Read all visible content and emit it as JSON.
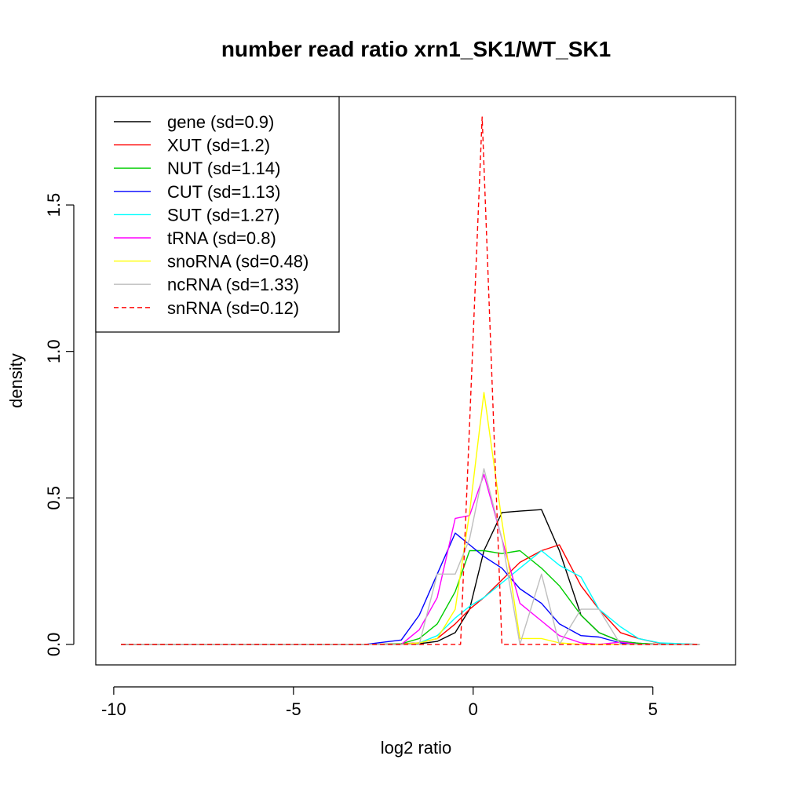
{
  "chart_data": {
    "type": "line",
    "title": "number read ratio xrn1_SK1/WT_SK1",
    "xlabel": "log2 ratio",
    "ylabel": "density",
    "xlim": [
      -10.5,
      7.3
    ],
    "ylim": [
      -0.07,
      1.87
    ],
    "xticks": [
      -10,
      -5,
      0,
      5
    ],
    "xtick_labels": [
      "-10",
      "-5",
      "0",
      "5"
    ],
    "yticks": [
      0.0,
      0.5,
      1.0,
      1.5
    ],
    "ytick_labels": [
      "0.0",
      "0.5",
      "1.0",
      "1.5"
    ],
    "grid": false,
    "legend_position": "top-left",
    "series": [
      {
        "name": "gene (sd=0.9)",
        "color": "#000000",
        "dash": "solid",
        "x": [
          -9.8,
          -3,
          -2,
          -1.5,
          -1,
          -0.5,
          -0.1,
          0.3,
          0.8,
          1.3,
          1.9,
          2.4,
          3,
          3.5,
          4.1,
          4.6,
          5.2,
          6.3
        ],
        "y": [
          0,
          0,
          0,
          0.002,
          0.01,
          0.04,
          0.12,
          0.32,
          0.45,
          0.455,
          0.46,
          0.32,
          0.1,
          0.04,
          0.01,
          0.004,
          0,
          0
        ]
      },
      {
        "name": "XUT (sd=1.2)",
        "color": "#ff0000",
        "dash": "solid",
        "x": [
          -9.8,
          -3,
          -2,
          -1.5,
          -1,
          -0.5,
          -0.1,
          0.3,
          0.8,
          1.3,
          1.9,
          2.4,
          3,
          3.5,
          4.1,
          4.6,
          5.2,
          6.3
        ],
        "y": [
          0,
          0,
          0.002,
          0.005,
          0.02,
          0.07,
          0.12,
          0.16,
          0.22,
          0.28,
          0.32,
          0.34,
          0.2,
          0.12,
          0.04,
          0.02,
          0.004,
          0
        ]
      },
      {
        "name": "NUT (sd=1.14)",
        "color": "#00cd00",
        "dash": "solid",
        "x": [
          -9.8,
          -3,
          -2,
          -1.5,
          -1,
          -0.5,
          -0.1,
          0.3,
          0.8,
          1.3,
          1.9,
          2.4,
          3,
          3.5,
          4.1,
          4.6,
          5.2,
          6.3
        ],
        "y": [
          0,
          0,
          0.002,
          0.02,
          0.07,
          0.18,
          0.32,
          0.32,
          0.31,
          0.32,
          0.26,
          0.2,
          0.1,
          0.04,
          0.01,
          0.004,
          0,
          0
        ]
      },
      {
        "name": "CUT (sd=1.13)",
        "color": "#0000ff",
        "dash": "solid",
        "x": [
          -9.8,
          -3,
          -2,
          -1.5,
          -1,
          -0.5,
          -0.1,
          0.3,
          0.8,
          1.3,
          1.9,
          2.4,
          3,
          3.5,
          4.1,
          4.6,
          5.2,
          6.3
        ],
        "y": [
          0,
          0,
          0.015,
          0.1,
          0.24,
          0.38,
          0.34,
          0.3,
          0.26,
          0.19,
          0.14,
          0.07,
          0.03,
          0.025,
          0.005,
          0,
          0,
          0
        ]
      },
      {
        "name": "SUT (sd=1.27)",
        "color": "#00ffff",
        "dash": "solid",
        "x": [
          -9.8,
          -3,
          -2,
          -1.5,
          -1,
          -0.5,
          -0.1,
          0.3,
          0.8,
          1.3,
          1.9,
          2.4,
          3,
          3.5,
          4.1,
          4.6,
          5.2,
          6.3
        ],
        "y": [
          0,
          0,
          0,
          0.005,
          0.03,
          0.09,
          0.13,
          0.16,
          0.21,
          0.26,
          0.32,
          0.27,
          0.23,
          0.12,
          0.06,
          0.02,
          0.005,
          0
        ]
      },
      {
        "name": "tRNA (sd=0.8)",
        "color": "#ff00ff",
        "dash": "solid",
        "x": [
          -9.8,
          -3,
          -2,
          -1.5,
          -1,
          -0.5,
          -0.1,
          0.3,
          0.8,
          1.3,
          1.9,
          2.4,
          3,
          3.5,
          4.1,
          4.6,
          5.2,
          6.3
        ],
        "y": [
          0,
          0,
          0,
          0.05,
          0.16,
          0.43,
          0.44,
          0.58,
          0.36,
          0.14,
          0.08,
          0.03,
          0.005,
          0,
          0.008,
          0,
          0,
          0
        ]
      },
      {
        "name": "snoRNA (sd=0.48)",
        "color": "#ffff00",
        "dash": "solid",
        "x": [
          -9.8,
          -3,
          -2,
          -1.5,
          -1,
          -0.5,
          -0.1,
          0.3,
          0.8,
          1.3,
          1.9,
          2.4,
          3,
          3.5,
          4.1,
          4.6,
          5.2,
          6.3
        ],
        "y": [
          0,
          0,
          0,
          0.005,
          0.02,
          0.12,
          0.45,
          0.86,
          0.42,
          0.02,
          0.02,
          0.005,
          0,
          0,
          0,
          0,
          0,
          0
        ]
      },
      {
        "name": "ncRNA (sd=1.33)",
        "color": "#bebebe",
        "dash": "solid",
        "x": [
          -9.8,
          -3,
          -2,
          -1.5,
          -1,
          -0.5,
          -0.1,
          0.3,
          0.8,
          1.3,
          1.9,
          2.4,
          3,
          3.5,
          4.1,
          4.6,
          5.2,
          6.3
        ],
        "y": [
          0,
          0,
          0,
          0,
          0.24,
          0.24,
          0.36,
          0.6,
          0.36,
          0,
          0.24,
          0,
          0.12,
          0.12,
          0,
          0,
          0,
          0
        ]
      },
      {
        "name": "snRNA (sd=0.12)",
        "color": "#ff0000",
        "dash": "dashed",
        "x": [
          -9.8,
          -0.35,
          0.25,
          0.8,
          6.3
        ],
        "y": [
          0,
          0,
          1.8,
          0,
          0
        ]
      }
    ]
  }
}
